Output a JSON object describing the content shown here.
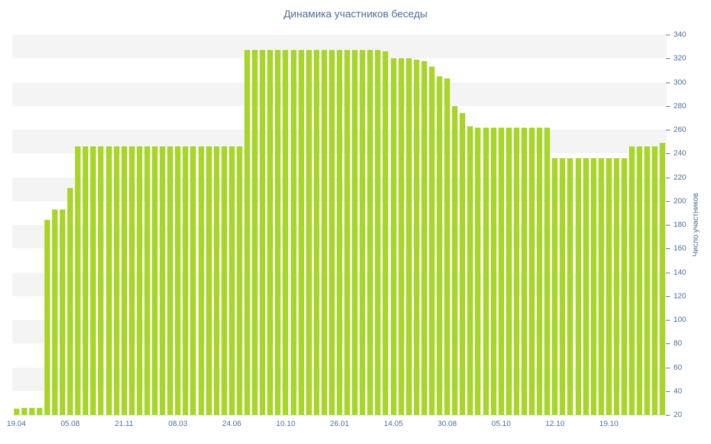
{
  "chart_data": {
    "type": "bar",
    "title": "Динамика участников беседы",
    "xlabel": "",
    "ylabel": "Число участников",
    "ylim": [
      20,
      340
    ],
    "y_tick_step": 20,
    "y_tick_labels": [
      "20",
      "40",
      "60",
      "80",
      "100",
      "120",
      "140",
      "160",
      "180",
      "200",
      "220",
      "240",
      "260",
      "280",
      "300",
      "320",
      "340"
    ],
    "x_tick_labels": [
      "19.04",
      "05.08",
      "21.11",
      "08.03",
      "24.06",
      "10.10",
      "26.01",
      "14.05",
      "30.08",
      "05.10",
      "12.10",
      "19.10"
    ],
    "x_tick_every": 7,
    "legend": "none",
    "grid": "striped-horizontal-bands",
    "values": [
      25,
      26,
      26,
      26,
      184,
      193,
      193,
      211,
      246,
      246,
      246,
      246,
      246,
      246,
      246,
      246,
      246,
      246,
      246,
      246,
      246,
      246,
      246,
      246,
      246,
      246,
      246,
      246,
      246,
      246,
      327,
      327,
      327,
      327,
      327,
      327,
      327,
      327,
      327,
      327,
      327,
      327,
      327,
      327,
      327,
      327,
      327,
      327,
      326,
      320,
      320,
      320,
      319,
      318,
      313,
      305,
      303,
      280,
      274,
      263,
      262,
      262,
      262,
      262,
      262,
      262,
      262,
      262,
      262,
      262,
      236,
      236,
      236,
      236,
      236,
      236,
      236,
      236,
      236,
      236,
      246,
      246,
      246,
      246,
      249
    ],
    "colors": {
      "bar": "#a8d628",
      "stripe": "#f4f4f4",
      "title": "#4d6f96",
      "text": "#4d6f96",
      "tick": "#4d6f96",
      "axis_line": "#d6dde8"
    }
  }
}
